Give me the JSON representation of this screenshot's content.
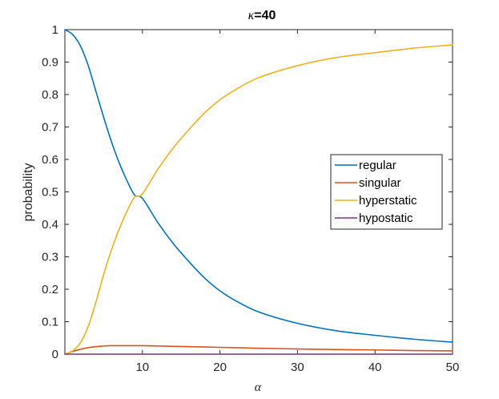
{
  "chart_data": {
    "type": "line",
    "title_symbol": "κ",
    "title_rest": "=40",
    "xlabel": "α",
    "ylabel": "probability",
    "xlim": [
      0,
      50
    ],
    "ylim": [
      0,
      1
    ],
    "xticks": [
      10,
      20,
      30,
      40,
      50
    ],
    "xtick_labels": [
      "10",
      "20",
      "30",
      "40",
      "50"
    ],
    "yticks": [
      0,
      0.1,
      0.2,
      0.3,
      0.4,
      0.5,
      0.6,
      0.7,
      0.8,
      0.9,
      1
    ],
    "ytick_labels": [
      "0",
      "0.1",
      "0.2",
      "0.3",
      "0.4",
      "0.5",
      "0.6",
      "0.7",
      "0.8",
      "0.9",
      "1"
    ],
    "grid": false,
    "legend_position": "center-right",
    "x": [
      0,
      1,
      2,
      3,
      4,
      5,
      6,
      7,
      8,
      9,
      10,
      12,
      14,
      16,
      18,
      20,
      22,
      25,
      30,
      35,
      40,
      45,
      50
    ],
    "series": [
      {
        "name": "regular",
        "color": "#0072BD",
        "values": [
          1.0,
          0.985,
          0.95,
          0.89,
          0.81,
          0.73,
          0.655,
          0.59,
          0.535,
          0.49,
          0.48,
          0.405,
          0.34,
          0.285,
          0.235,
          0.195,
          0.165,
          0.13,
          0.095,
          0.072,
          0.058,
          0.046,
          0.037
        ]
      },
      {
        "name": "singular",
        "color": "#D95319",
        "values": [
          0.0,
          0.008,
          0.015,
          0.02,
          0.023,
          0.025,
          0.026,
          0.026,
          0.026,
          0.026,
          0.026,
          0.025,
          0.024,
          0.023,
          0.022,
          0.021,
          0.02,
          0.018,
          0.016,
          0.014,
          0.013,
          0.011,
          0.01
        ]
      },
      {
        "name": "hyperstatic",
        "color": "#EDB120",
        "values": [
          0.0,
          0.01,
          0.035,
          0.085,
          0.16,
          0.245,
          0.32,
          0.385,
          0.44,
          0.484,
          0.494,
          0.57,
          0.636,
          0.692,
          0.743,
          0.784,
          0.815,
          0.852,
          0.889,
          0.914,
          0.929,
          0.943,
          0.953
        ]
      },
      {
        "name": "hypostatic",
        "color": "#7E2F8E",
        "values": [
          0,
          0,
          0,
          0,
          0,
          0,
          0,
          0,
          0,
          0,
          0,
          0,
          0,
          0,
          0,
          0,
          0,
          0,
          0,
          0,
          0,
          0,
          0
        ]
      }
    ]
  }
}
